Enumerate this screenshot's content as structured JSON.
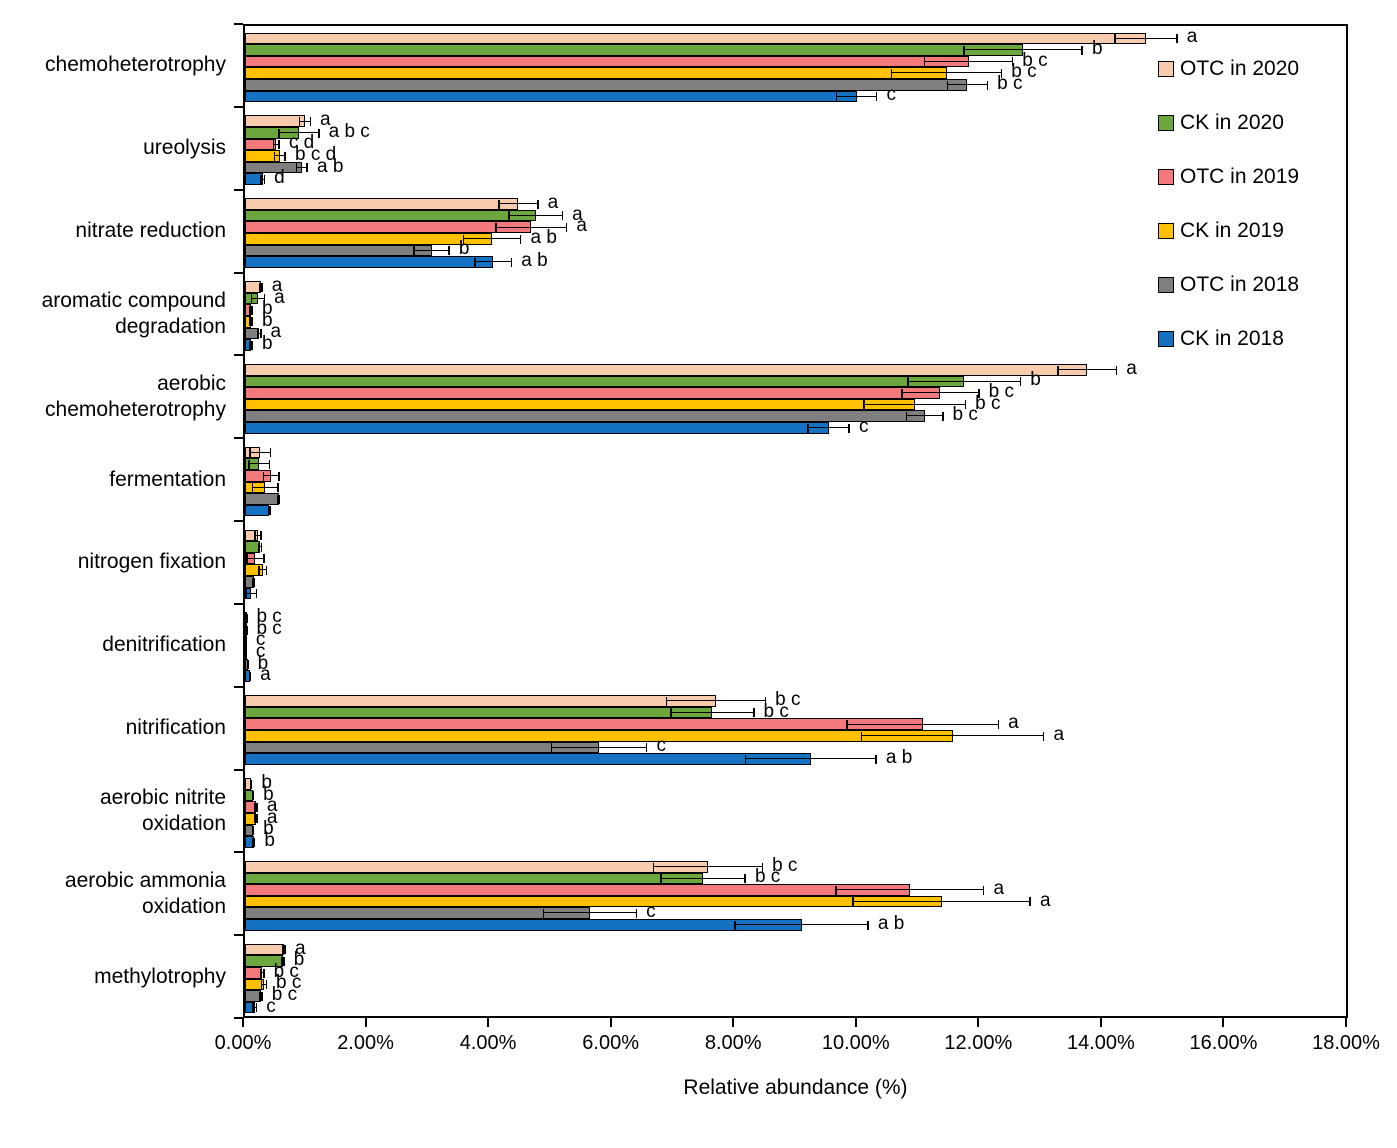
{
  "chart_data": {
    "type": "bar",
    "orientation": "horizontal-grouped",
    "xlabel": "Relative abundance (%)",
    "xlim": [
      0,
      18
    ],
    "x_ticks": [
      "0.00%",
      "2.00%",
      "4.00%",
      "6.00%",
      "8.00%",
      "10.00%",
      "12.00%",
      "14.00%",
      "16.00%",
      "18.00%"
    ],
    "grid": "off",
    "legend_position": "inside-top-right",
    "error_bars": "horizontal, both caps, black",
    "series": [
      {
        "name": "OTC in 2020",
        "color": "#F8CBAD"
      },
      {
        "name": "CK in 2020",
        "color": "#6CA63F"
      },
      {
        "name": "OTC in 2019",
        "color": "#F4797D"
      },
      {
        "name": "CK in 2019",
        "color": "#FFC000"
      },
      {
        "name": "OTC in 2018",
        "color": "#7F7F7F"
      },
      {
        "name": "CK in 2018",
        "color": "#1571C2"
      }
    ],
    "categories": [
      {
        "name": "chemoheterotrophy",
        "lines": [
          "chemoheterotrophy"
        ],
        "values": [
          14.73,
          12.72,
          11.83,
          11.47,
          11.81,
          10.0
        ],
        "errors": [
          0.52,
          0.98,
          0.73,
          0.91,
          0.34,
          0.34
        ],
        "sig": [
          "a",
          "b",
          "b c",
          "b c",
          "b c",
          "c"
        ]
      },
      {
        "name": "ureolysis",
        "lines": [
          "ureolysis"
        ],
        "values": [
          0.98,
          0.88,
          0.51,
          0.57,
          0.93,
          0.29
        ],
        "errors": [
          0.1,
          0.34,
          0.06,
          0.1,
          0.1,
          0.04
        ],
        "sig": [
          "a",
          "a b c",
          "c d",
          "b c d",
          "a b",
          "d"
        ]
      },
      {
        "name": "nitrate reduction",
        "lines": [
          "nitrate reduction"
        ],
        "values": [
          4.47,
          4.75,
          4.68,
          4.04,
          3.05,
          4.06
        ],
        "errors": [
          0.33,
          0.45,
          0.59,
          0.48,
          0.3,
          0.31
        ],
        "sig": [
          "a",
          "a",
          "a",
          "a b",
          "b",
          "a b"
        ]
      },
      {
        "name": "aromatic compound degradation",
        "lines": [
          "aromatic compound",
          "degradation"
        ],
        "values": [
          0.26,
          0.21,
          0.1,
          0.1,
          0.23,
          0.1
        ],
        "errors": [
          0.03,
          0.12,
          0.03,
          0.03,
          0.04,
          0.03
        ],
        "sig": [
          "a",
          "a",
          "b",
          "b",
          "a",
          "b"
        ]
      },
      {
        "name": "aerobic chemoheterotrophy",
        "lines": [
          "aerobic",
          "chemoheterotrophy"
        ],
        "values": [
          13.77,
          11.76,
          11.37,
          10.95,
          11.11,
          9.54
        ],
        "errors": [
          0.49,
          0.93,
          0.64,
          0.84,
          0.31,
          0.35
        ],
        "sig": [
          "a",
          "b",
          "b c",
          "b c",
          "b c",
          "c"
        ]
      },
      {
        "name": "fermentation",
        "lines": [
          "fermentation"
        ],
        "values": [
          0.25,
          0.23,
          0.43,
          0.33,
          0.55,
          0.4
        ],
        "errors": [
          0.18,
          0.18,
          0.14,
          0.22,
          0.02,
          0.02
        ],
        "sig": [
          "",
          "",
          "",
          "",
          "",
          ""
        ]
      },
      {
        "name": "nitrogen fixation",
        "lines": [
          "nitrogen fixation"
        ],
        "values": [
          0.21,
          0.25,
          0.17,
          0.29,
          0.14,
          0.1
        ],
        "errors": [
          0.06,
          0.03,
          0.15,
          0.07,
          0.02,
          0.1
        ],
        "sig": [
          "",
          "",
          "",
          "",
          "",
          ""
        ]
      },
      {
        "name": "denitrification",
        "lines": [
          "denitrification"
        ],
        "values": [
          0.03,
          0.03,
          0.02,
          0.02,
          0.05,
          0.08
        ],
        "errors": [
          0.01,
          0.01,
          0.01,
          0.01,
          0.01,
          0.02
        ],
        "sig": [
          "b c",
          "b c",
          "c",
          "c",
          "b",
          "a"
        ]
      },
      {
        "name": "nitrification",
        "lines": [
          "nitrification"
        ],
        "values": [
          7.7,
          7.64,
          11.08,
          11.57,
          5.79,
          9.25
        ],
        "errors": [
          0.82,
          0.69,
          1.25,
          1.5,
          0.79,
          1.08
        ],
        "sig": [
          "b c",
          "b c",
          "a",
          "a",
          "c",
          "a b"
        ]
      },
      {
        "name": "aerobic nitrite oxidation",
        "lines": [
          "aerobic nitrite",
          "oxidation"
        ],
        "values": [
          0.1,
          0.13,
          0.18,
          0.18,
          0.13,
          0.14
        ],
        "errors": [
          0.02,
          0.02,
          0.03,
          0.03,
          0.02,
          0.03
        ],
        "sig": [
          "b",
          "b",
          "a",
          "a",
          "b",
          "b"
        ]
      },
      {
        "name": "aerobic ammonia oxidation",
        "lines": [
          "aerobic ammonia",
          "oxidation"
        ],
        "values": [
          7.57,
          7.49,
          10.87,
          11.39,
          5.64,
          9.1
        ],
        "errors": [
          0.9,
          0.7,
          1.22,
          1.46,
          0.77,
          1.1
        ],
        "sig": [
          "b c",
          "b c",
          "a",
          "a",
          "c",
          "a b"
        ]
      },
      {
        "name": "methylotrophy",
        "lines": [
          "methylotrophy"
        ],
        "values": [
          0.64,
          0.62,
          0.28,
          0.31,
          0.26,
          0.16
        ],
        "errors": [
          0.03,
          0.03,
          0.04,
          0.05,
          0.03,
          0.04
        ],
        "sig": [
          "a",
          "b",
          "b c",
          "b c",
          "b c",
          "c"
        ]
      }
    ]
  }
}
